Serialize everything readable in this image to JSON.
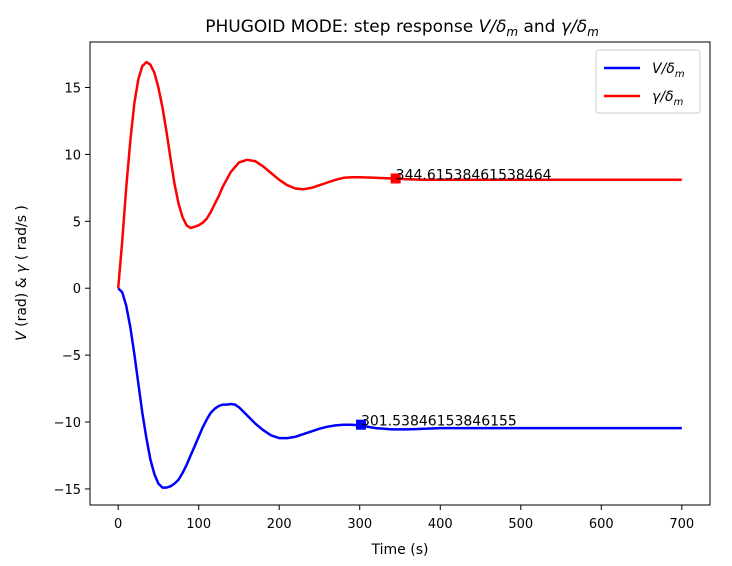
{
  "chart_data": {
    "type": "line",
    "title": "PHUGOID MODE: step response V/δm and γ/δm",
    "title_parts": {
      "prefix": "PHUGOID MODE: step response ",
      "v": "V",
      "slash1": "/δ",
      "m1": "m",
      "and": " and ",
      "g": "γ",
      "slash2": "/δ",
      "m2": "m"
    },
    "xlabel": "Time (s)",
    "ylabel": "V (rad) & γ ( rad/s )",
    "ylabel_parts": {
      "v": "V",
      "rad": " (rad) & ",
      "g": "γ",
      "rads": " ( rad/s )"
    },
    "xlim": [
      -35,
      735
    ],
    "ylim": [
      -16.2,
      18.4
    ],
    "xticks": [
      0,
      100,
      200,
      300,
      400,
      500,
      600,
      700
    ],
    "yticks": [
      -15,
      -10,
      -5,
      0,
      5,
      10,
      15
    ],
    "ytick_labels": [
      "−15",
      "−10",
      "−5",
      "0",
      "5",
      "10",
      "15"
    ],
    "grid": false,
    "legend_position": "top-right",
    "series": [
      {
        "name": "V/δm",
        "legend_main": "V/δ",
        "legend_sub": "m",
        "color": "#0000ff",
        "x": [
          0,
          5,
          10,
          15,
          20,
          25,
          30,
          35,
          40,
          45,
          50,
          55,
          60,
          65,
          70,
          75,
          80,
          85,
          90,
          95,
          100,
          105,
          110,
          115,
          120,
          125,
          130,
          135,
          140,
          145,
          150,
          155,
          160,
          170,
          180,
          190,
          200,
          210,
          220,
          230,
          240,
          250,
          260,
          270,
          280,
          290,
          300,
          320,
          340,
          360,
          380,
          400,
          420,
          450,
          480,
          520,
          560,
          600,
          650,
          700
        ],
        "y": [
          0,
          -0.3,
          -1.3,
          -2.9,
          -4.9,
          -7.1,
          -9.3,
          -11.2,
          -12.8,
          -13.9,
          -14.6,
          -14.9,
          -14.9,
          -14.8,
          -14.6,
          -14.3,
          -13.8,
          -13.2,
          -12.5,
          -11.8,
          -11.1,
          -10.4,
          -9.8,
          -9.3,
          -9.0,
          -8.8,
          -8.7,
          -8.7,
          -8.65,
          -8.7,
          -8.9,
          -9.2,
          -9.5,
          -10.1,
          -10.6,
          -11.0,
          -11.2,
          -11.2,
          -11.1,
          -10.9,
          -10.7,
          -10.5,
          -10.35,
          -10.25,
          -10.2,
          -10.2,
          -10.25,
          -10.45,
          -10.55,
          -10.55,
          -10.5,
          -10.45,
          -10.45,
          -10.45,
          -10.45,
          -10.45,
          -10.45,
          -10.45,
          -10.45,
          -10.45
        ]
      },
      {
        "name": "γ/δm",
        "legend_main": "γ/δ",
        "legend_sub": "m",
        "color": "#ff0000",
        "x": [
          0,
          5,
          10,
          15,
          20,
          25,
          30,
          35,
          40,
          45,
          50,
          55,
          60,
          65,
          70,
          75,
          80,
          85,
          90,
          95,
          100,
          105,
          110,
          115,
          120,
          125,
          130,
          140,
          150,
          160,
          170,
          180,
          190,
          200,
          210,
          220,
          230,
          240,
          250,
          260,
          270,
          280,
          290,
          300,
          320,
          340,
          360,
          380,
          400,
          420,
          450,
          480,
          520,
          560,
          600,
          650,
          700
        ],
        "y": [
          0,
          3.5,
          7.5,
          11.0,
          13.8,
          15.6,
          16.6,
          16.9,
          16.7,
          16.1,
          15.0,
          13.5,
          11.7,
          9.7,
          7.8,
          6.3,
          5.3,
          4.7,
          4.5,
          4.6,
          4.7,
          4.9,
          5.2,
          5.7,
          6.3,
          6.9,
          7.6,
          8.7,
          9.4,
          9.6,
          9.5,
          9.1,
          8.6,
          8.1,
          7.7,
          7.45,
          7.4,
          7.5,
          7.7,
          7.9,
          8.1,
          8.25,
          8.3,
          8.3,
          8.25,
          8.2,
          8.15,
          8.1,
          8.1,
          8.1,
          8.1,
          8.1,
          8.1,
          8.1,
          8.1,
          8.1,
          8.1
        ]
      }
    ],
    "markers": [
      {
        "series": 0,
        "x": 301.53846153846155,
        "y": -10.2,
        "label": "301.53846153846155"
      },
      {
        "series": 1,
        "x": 344.61538461538464,
        "y": 8.2,
        "label": "344.61538461538464"
      }
    ]
  }
}
